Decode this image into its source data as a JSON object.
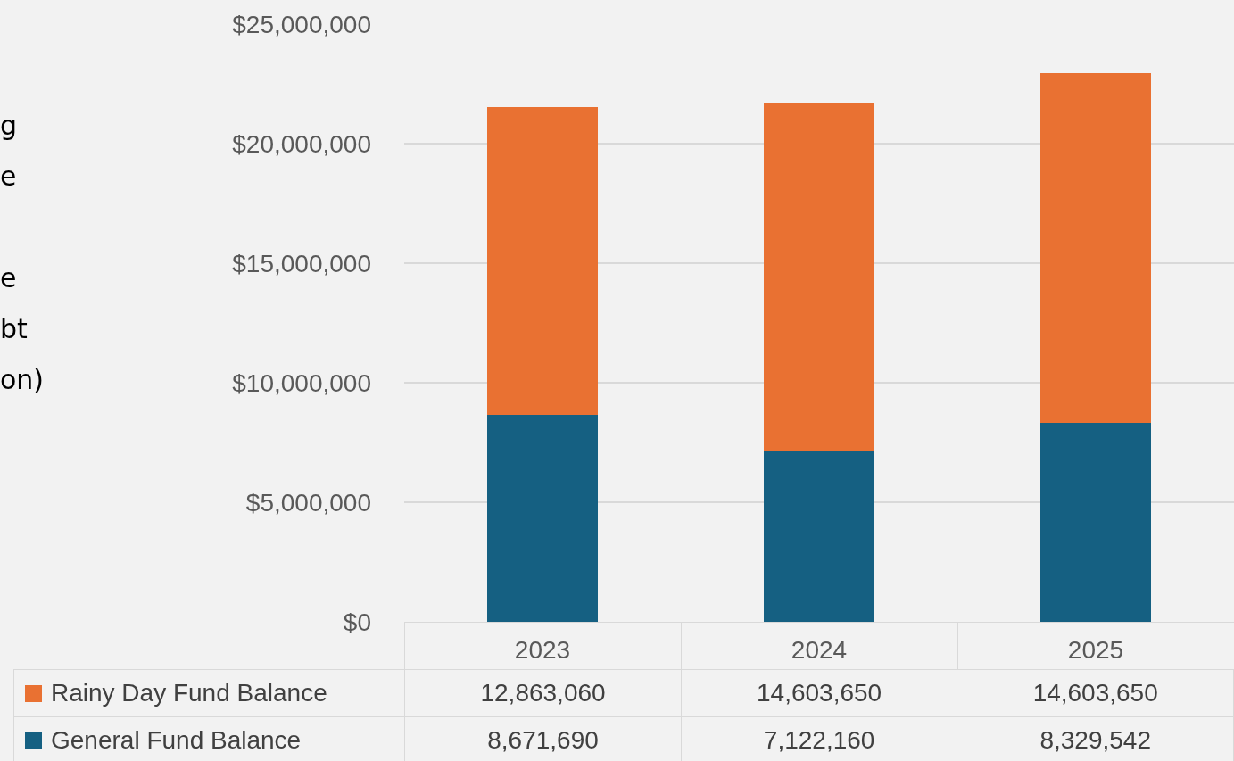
{
  "chart_data": {
    "type": "bar",
    "stacked": true,
    "categories": [
      "2023",
      "2024",
      "2025"
    ],
    "series": [
      {
        "name": "General Fund Balance",
        "color": "#156082",
        "values": [
          8671690,
          7122160,
          8329542
        ],
        "value_labels": [
          "8,671,690",
          "7,122,160",
          "8,329,542"
        ]
      },
      {
        "name": "Rainy Day Fund Balance",
        "color": "#e97132",
        "values": [
          12863060,
          14603650,
          14603650
        ],
        "value_labels": [
          "12,863,060",
          "14,603,650",
          "14,603,650"
        ]
      }
    ],
    "ylim": [
      0,
      25000000
    ],
    "yticks": [
      {
        "value": 0,
        "label": "$0"
      },
      {
        "value": 5000000,
        "label": "$5,000,000"
      },
      {
        "value": 10000000,
        "label": "$10,000,000"
      },
      {
        "value": 15000000,
        "label": "$15,000,000"
      },
      {
        "value": 20000000,
        "label": "$20,000,000"
      },
      {
        "value": 25000000,
        "label": "$25,000,000"
      }
    ],
    "grid": "y",
    "legend": "bottom",
    "annotations": [
      "g\ne\n\ne\nbt\non)"
    ]
  }
}
